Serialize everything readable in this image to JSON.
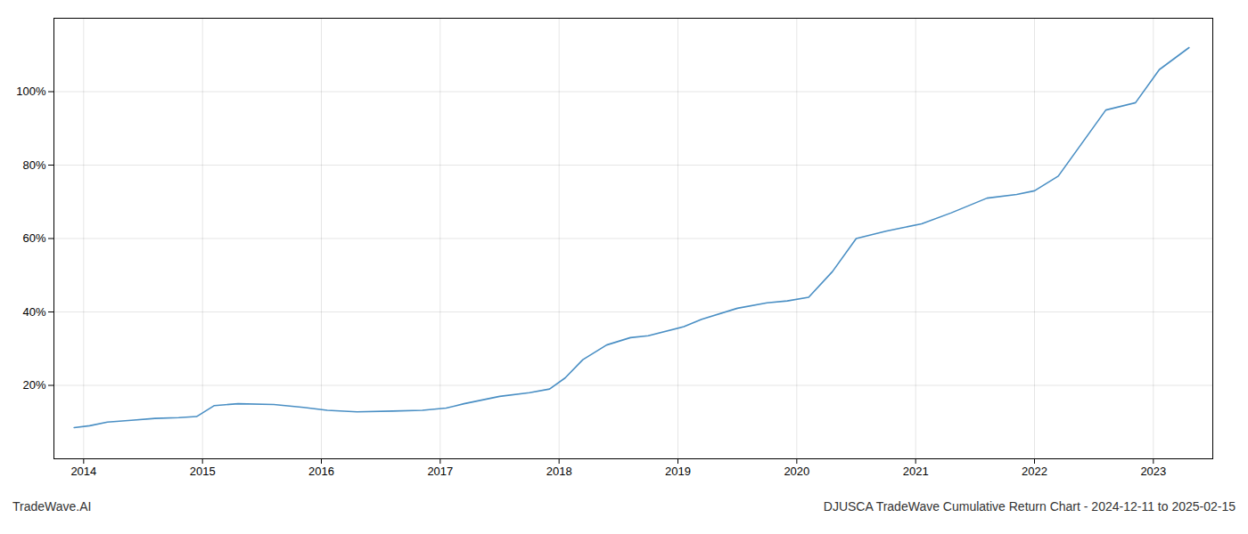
{
  "chart_data": {
    "type": "line",
    "title": "DJUSCA TradeWave Cumulative Return Chart - 2024-12-11 to 2025-02-15",
    "annotations": [
      "TradeWave.AI"
    ],
    "x": [
      2013.92,
      2014.05,
      2014.2,
      2014.4,
      2014.6,
      2014.8,
      2014.95,
      2015.1,
      2015.3,
      2015.6,
      2015.85,
      2016.05,
      2016.3,
      2016.6,
      2016.85,
      2017.05,
      2017.2,
      2017.5,
      2017.75,
      2017.92,
      2018.05,
      2018.2,
      2018.4,
      2018.6,
      2018.75,
      2019.05,
      2019.2,
      2019.5,
      2019.75,
      2019.92,
      2020.1,
      2020.3,
      2020.5,
      2020.75,
      2021.05,
      2021.3,
      2021.6,
      2021.85,
      2022.0,
      2022.2,
      2022.6,
      2022.85,
      2023.05,
      2023.3
    ],
    "values": [
      8.5,
      9,
      10,
      10.5,
      11,
      11.2,
      11.5,
      14.5,
      15,
      14.8,
      14,
      13.2,
      12.8,
      13,
      13.2,
      13.8,
      15,
      17,
      18,
      19,
      22,
      27,
      31,
      33,
      33.5,
      36,
      38,
      41,
      42.5,
      43,
      44,
      51,
      60,
      62,
      64,
      67,
      71,
      72,
      73,
      77,
      95,
      97,
      106,
      112
    ],
    "color": "#4a8fc4",
    "xlim": [
      2013.75,
      2023.5
    ],
    "xticks": [
      2014,
      2015,
      2016,
      2017,
      2018,
      2019,
      2020,
      2021,
      2022,
      2023
    ],
    "ylim": [
      0,
      120
    ],
    "yticks": [
      {
        "value": 20,
        "label": "20%"
      },
      {
        "value": 40,
        "label": "40%"
      },
      {
        "value": 60,
        "label": "60%"
      },
      {
        "value": 80,
        "label": "80%"
      },
      {
        "value": 100,
        "label": "100%"
      }
    ],
    "grid": true
  }
}
